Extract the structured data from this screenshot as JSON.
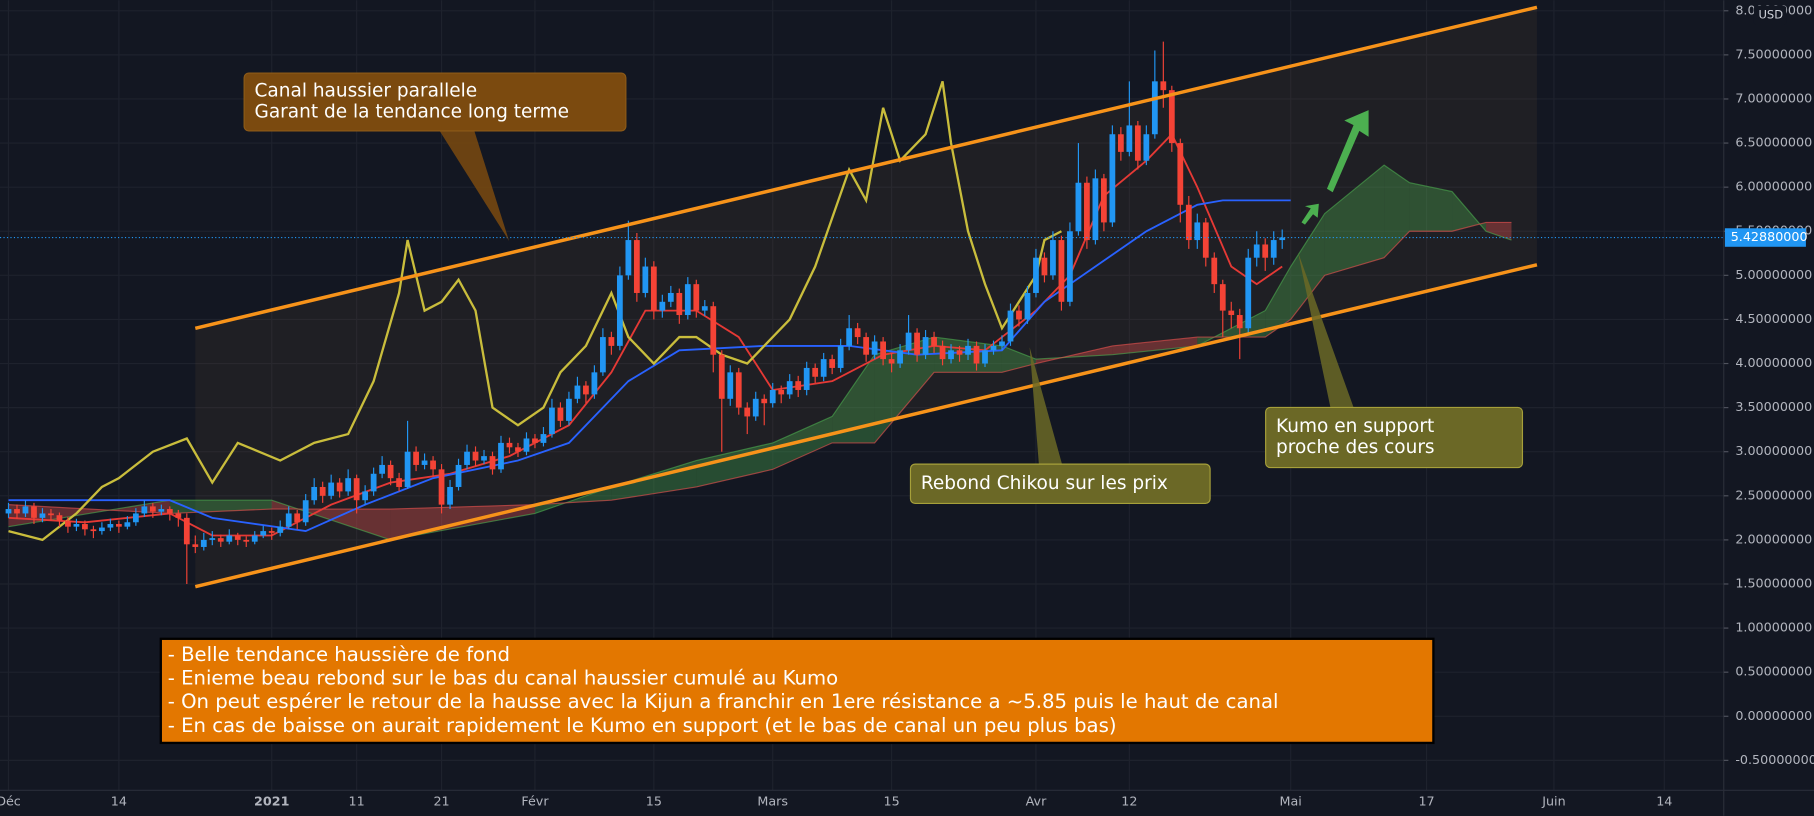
{
  "chart_data": {
    "type": "candlestick",
    "currency": "USD",
    "up_color": "#2196f3",
    "down_color": "#f44336",
    "x": [
      "2020-12-01",
      "2020-12-02",
      "2020-12-03",
      "2020-12-04",
      "2020-12-05",
      "2020-12-06",
      "2020-12-07",
      "2020-12-08",
      "2020-12-09",
      "2020-12-10",
      "2020-12-11",
      "2020-12-12",
      "2020-12-13",
      "2020-12-14",
      "2020-12-15",
      "2020-12-16",
      "2020-12-17",
      "2020-12-18",
      "2020-12-19",
      "2020-12-20",
      "2020-12-21",
      "2020-12-22",
      "2020-12-23",
      "2020-12-24",
      "2020-12-25",
      "2020-12-26",
      "2020-12-27",
      "2020-12-28",
      "2020-12-29",
      "2020-12-30",
      "2020-12-31",
      "2021-01-01",
      "2021-01-02",
      "2021-01-03",
      "2021-01-04",
      "2021-01-05",
      "2021-01-06",
      "2021-01-07",
      "2021-01-08",
      "2021-01-09",
      "2021-01-10",
      "2021-01-11",
      "2021-01-12",
      "2021-01-13",
      "2021-01-14",
      "2021-01-15",
      "2021-01-16",
      "2021-01-17",
      "2021-01-18",
      "2021-01-19",
      "2021-01-20",
      "2021-01-21",
      "2021-01-22",
      "2021-01-23",
      "2021-01-24",
      "2021-01-25",
      "2021-01-26",
      "2021-01-27",
      "2021-01-28",
      "2021-01-29",
      "2021-01-30",
      "2021-01-31",
      "2021-02-01",
      "2021-02-02",
      "2021-02-03",
      "2021-02-04",
      "2021-02-05",
      "2021-02-06",
      "2021-02-07",
      "2021-02-08",
      "2021-02-09",
      "2021-02-10",
      "2021-02-11",
      "2021-02-12",
      "2021-02-13",
      "2021-02-14",
      "2021-02-15",
      "2021-02-16",
      "2021-02-17",
      "2021-02-18",
      "2021-02-19",
      "2021-02-20",
      "2021-02-21",
      "2021-02-22",
      "2021-02-23",
      "2021-02-24",
      "2021-02-25",
      "2021-02-26",
      "2021-02-27",
      "2021-02-28",
      "2021-03-01",
      "2021-03-02",
      "2021-03-03",
      "2021-03-04",
      "2021-03-05",
      "2021-03-06",
      "2021-03-07",
      "2021-03-08",
      "2021-03-09",
      "2021-03-10",
      "2021-03-11",
      "2021-03-12",
      "2021-03-13",
      "2021-03-14",
      "2021-03-15",
      "2021-03-16",
      "2021-03-17",
      "2021-03-18",
      "2021-03-19",
      "2021-03-20",
      "2021-03-21",
      "2021-03-22",
      "2021-03-23",
      "2021-03-24",
      "2021-03-25",
      "2021-03-26",
      "2021-03-27",
      "2021-03-28",
      "2021-03-29",
      "2021-03-30",
      "2021-03-31",
      "2021-04-01",
      "2021-04-02",
      "2021-04-03",
      "2021-04-04",
      "2021-04-05",
      "2021-04-06",
      "2021-04-07",
      "2021-04-08",
      "2021-04-09",
      "2021-04-10",
      "2021-04-11",
      "2021-04-12",
      "2021-04-13",
      "2021-04-14",
      "2021-04-15",
      "2021-04-16",
      "2021-04-17",
      "2021-04-18",
      "2021-04-19",
      "2021-04-20",
      "2021-04-21",
      "2021-04-22",
      "2021-04-23",
      "2021-04-24",
      "2021-04-25",
      "2021-04-26",
      "2021-04-27",
      "2021-04-28",
      "2021-04-29",
      "2021-04-30"
    ],
    "open": [
      2.3,
      2.35,
      2.3,
      2.38,
      2.25,
      2.3,
      2.28,
      2.22,
      2.15,
      2.18,
      2.12,
      2.1,
      2.14,
      2.18,
      2.15,
      2.2,
      2.3,
      2.38,
      2.32,
      2.35,
      2.3,
      2.25,
      1.95,
      1.92,
      2.0,
      2.02,
      1.98,
      2.05,
      2.0,
      1.98,
      2.05,
      2.1,
      2.08,
      2.15,
      2.3,
      2.2,
      2.45,
      2.6,
      2.5,
      2.65,
      2.55,
      2.7,
      2.45,
      2.55,
      2.75,
      2.85,
      2.7,
      2.6,
      3.0,
      2.85,
      2.9,
      2.8,
      2.4,
      2.6,
      2.85,
      3.0,
      2.9,
      2.95,
      2.8,
      3.1,
      3.05,
      3.0,
      3.15,
      3.1,
      3.2,
      3.5,
      3.35,
      3.6,
      3.75,
      3.65,
      3.9,
      4.3,
      4.2,
      5.0,
      5.4,
      4.8,
      5.1,
      4.6,
      4.7,
      4.8,
      4.55,
      4.9,
      4.6,
      4.65,
      4.1,
      3.6,
      3.9,
      3.5,
      3.4,
      3.6,
      3.55,
      3.7,
      3.65,
      3.8,
      3.7,
      3.95,
      3.85,
      4.05,
      3.95,
      4.2,
      4.4,
      4.3,
      4.1,
      4.25,
      4.05,
      4.0,
      4.15,
      4.35,
      4.1,
      4.3,
      4.2,
      4.05,
      4.15,
      4.1,
      4.2,
      4.0,
      4.15,
      4.2,
      4.25,
      4.6,
      4.5,
      4.8,
      5.2,
      5.0,
      5.4,
      4.7,
      5.5,
      6.05,
      5.4,
      6.1,
      5.6,
      6.6,
      6.4,
      6.7,
      6.3,
      6.6,
      7.2,
      7.1,
      6.5,
      5.8,
      5.4,
      5.6,
      5.2,
      4.9,
      4.6,
      4.55,
      4.4,
      5.2,
      5.35,
      5.2,
      5.4
    ],
    "high": [
      2.42,
      2.4,
      2.45,
      2.42,
      2.36,
      2.35,
      2.31,
      2.26,
      2.24,
      2.22,
      2.16,
      2.2,
      2.24,
      2.22,
      2.27,
      2.36,
      2.45,
      2.42,
      2.4,
      2.38,
      2.34,
      2.3,
      2.05,
      2.08,
      2.1,
      2.06,
      2.12,
      2.08,
      2.04,
      2.1,
      2.16,
      2.14,
      2.22,
      2.38,
      2.34,
      2.52,
      2.7,
      2.66,
      2.74,
      2.7,
      2.8,
      2.74,
      2.62,
      2.82,
      2.95,
      2.9,
      2.76,
      3.35,
      3.06,
      2.98,
      2.95,
      2.86,
      2.68,
      2.92,
      3.08,
      3.06,
      3.02,
      3.0,
      3.18,
      3.16,
      3.1,
      3.22,
      3.2,
      3.28,
      3.6,
      3.56,
      3.68,
      3.85,
      3.8,
      3.98,
      4.4,
      4.36,
      5.1,
      5.62,
      5.48,
      5.2,
      5.16,
      4.78,
      4.88,
      4.85,
      4.98,
      4.95,
      4.72,
      4.7,
      4.15,
      3.98,
      3.95,
      3.56,
      3.68,
      3.65,
      3.78,
      3.75,
      3.88,
      3.86,
      4.02,
      4.0,
      4.12,
      4.1,
      4.28,
      4.55,
      4.46,
      4.35,
      4.32,
      4.3,
      4.12,
      4.22,
      4.55,
      4.4,
      4.38,
      4.36,
      4.26,
      4.22,
      4.2,
      4.28,
      4.25,
      4.22,
      4.26,
      4.32,
      4.68,
      4.66,
      4.88,
      5.3,
      5.26,
      5.5,
      5.45,
      5.6,
      6.5,
      6.12,
      6.2,
      6.15,
      6.7,
      6.68,
      7.2,
      6.75,
      6.7,
      7.55,
      7.65,
      7.15,
      6.55,
      5.9,
      5.7,
      5.65,
      5.26,
      4.95,
      4.7,
      4.62,
      5.3,
      5.5,
      5.42,
      5.5,
      5.52
    ],
    "low": [
      2.25,
      2.24,
      2.26,
      2.18,
      2.2,
      2.22,
      2.15,
      2.08,
      2.1,
      2.05,
      2.02,
      2.06,
      2.1,
      2.08,
      2.12,
      2.16,
      2.26,
      2.25,
      2.28,
      2.22,
      2.15,
      1.5,
      1.85,
      1.88,
      1.94,
      1.92,
      1.95,
      1.94,
      1.92,
      1.95,
      2.02,
      2.0,
      2.04,
      2.12,
      2.12,
      2.16,
      2.4,
      2.42,
      2.46,
      2.48,
      2.5,
      2.3,
      2.4,
      2.5,
      2.7,
      2.62,
      2.55,
      2.58,
      2.78,
      2.8,
      2.72,
      2.3,
      2.35,
      2.56,
      2.8,
      2.84,
      2.86,
      2.74,
      2.76,
      2.98,
      2.94,
      2.96,
      3.04,
      3.06,
      3.16,
      3.28,
      3.3,
      3.55,
      3.55,
      3.6,
      3.86,
      4.1,
      4.15,
      4.95,
      4.7,
      4.75,
      4.5,
      4.52,
      4.64,
      4.45,
      4.5,
      4.52,
      4.54,
      3.9,
      3.0,
      3.52,
      3.42,
      3.2,
      3.35,
      3.3,
      3.5,
      3.55,
      3.6,
      3.62,
      3.64,
      3.78,
      3.8,
      3.88,
      3.9,
      4.15,
      4.22,
      4.02,
      4.05,
      3.98,
      3.9,
      3.95,
      4.1,
      4.02,
      4.05,
      4.12,
      3.98,
      4.0,
      4.02,
      4.04,
      3.92,
      3.96,
      4.1,
      4.15,
      4.2,
      4.42,
      4.45,
      4.75,
      4.92,
      4.95,
      4.6,
      4.65,
      5.45,
      5.3,
      5.35,
      5.5,
      5.55,
      6.3,
      6.35,
      6.2,
      6.25,
      6.55,
      6.9,
      6.4,
      5.6,
      5.3,
      5.3,
      5.1,
      4.8,
      4.3,
      4.4,
      4.05,
      4.35,
      5.1,
      5.05,
      5.12,
      5.3
    ],
    "close": [
      2.35,
      2.3,
      2.38,
      2.25,
      2.3,
      2.28,
      2.22,
      2.15,
      2.18,
      2.12,
      2.1,
      2.14,
      2.18,
      2.15,
      2.2,
      2.3,
      2.38,
      2.32,
      2.35,
      2.3,
      2.25,
      1.95,
      1.92,
      2.0,
      2.02,
      1.98,
      2.05,
      2.0,
      1.98,
      2.05,
      2.1,
      2.08,
      2.15,
      2.3,
      2.2,
      2.45,
      2.6,
      2.5,
      2.65,
      2.55,
      2.7,
      2.45,
      2.55,
      2.75,
      2.85,
      2.7,
      2.6,
      3.0,
      2.85,
      2.9,
      2.8,
      2.4,
      2.6,
      2.85,
      3.0,
      2.9,
      2.95,
      2.8,
      3.1,
      3.05,
      3.0,
      3.15,
      3.1,
      3.2,
      3.5,
      3.35,
      3.6,
      3.75,
      3.65,
      3.9,
      4.3,
      4.2,
      5.0,
      5.4,
      4.8,
      5.1,
      4.6,
      4.7,
      4.8,
      4.55,
      4.9,
      4.6,
      4.65,
      4.1,
      3.6,
      3.9,
      3.5,
      3.4,
      3.6,
      3.55,
      3.7,
      3.65,
      3.8,
      3.7,
      3.95,
      3.85,
      4.05,
      3.95,
      4.2,
      4.4,
      4.3,
      4.1,
      4.25,
      4.05,
      4.0,
      4.15,
      4.35,
      4.1,
      4.3,
      4.2,
      4.05,
      4.15,
      4.1,
      4.2,
      4.0,
      4.15,
      4.2,
      4.25,
      4.6,
      4.5,
      4.8,
      5.2,
      5.0,
      5.4,
      4.7,
      5.5,
      6.05,
      5.4,
      6.1,
      5.6,
      6.6,
      6.4,
      6.7,
      6.3,
      6.6,
      7.2,
      7.1,
      6.5,
      5.8,
      5.4,
      5.6,
      5.2,
      4.9,
      4.6,
      4.55,
      4.4,
      5.2,
      5.35,
      5.2,
      5.4,
      5.4288
    ],
    "price_line": {
      "value": 5.4288,
      "label": "5.42880000",
      "color": "#2196f3"
    },
    "lines": [
      {
        "color": "#e53935",
        "x": [
          "2020-12-01",
          "2020-12-10",
          "2020-12-20",
          "2020-12-25",
          "2021-01-01",
          "2021-01-08",
          "2021-01-15",
          "2021-01-22",
          "2021-01-29",
          "2021-02-05",
          "2021-02-10",
          "2021-02-14",
          "2021-02-20",
          "2021-02-25",
          "2021-03-01",
          "2021-03-08",
          "2021-03-14",
          "2021-03-20",
          "2021-03-26",
          "2021-04-01",
          "2021-04-05",
          "2021-04-09",
          "2021-04-14",
          "2021-04-17",
          "2021-04-20",
          "2021-04-24",
          "2021-04-27",
          "2021-04-30"
        ],
        "values": [
          2.25,
          2.2,
          2.3,
          2.05,
          2.05,
          2.4,
          2.65,
          2.75,
          2.95,
          3.3,
          3.9,
          4.6,
          4.6,
          4.3,
          3.7,
          3.8,
          4.1,
          4.2,
          4.15,
          4.6,
          5.0,
          5.9,
          6.3,
          6.6,
          6.0,
          5.1,
          4.9,
          5.1
        ]
      },
      {
        "color": "#2962ff",
        "x": [
          "2020-12-01",
          "2020-12-20",
          "2020-12-25",
          "2021-01-05",
          "2021-01-12",
          "2021-01-20",
          "2021-01-30",
          "2021-02-05",
          "2021-02-12",
          "2021-02-18",
          "2021-02-28",
          "2021-03-10",
          "2021-03-18",
          "2021-03-28",
          "2021-04-02",
          "2021-04-08",
          "2021-04-14",
          "2021-04-20",
          "2021-04-23",
          "2021-05-01"
        ],
        "values": [
          2.45,
          2.45,
          2.25,
          2.1,
          2.4,
          2.7,
          2.9,
          3.1,
          3.8,
          4.15,
          4.2,
          4.2,
          4.1,
          4.15,
          4.7,
          5.1,
          5.5,
          5.8,
          5.85,
          5.85
        ]
      },
      {
        "color": "#c9bd3c",
        "x": [
          "2020-12-01",
          "2020-12-05",
          "2020-12-09",
          "2020-12-12",
          "2020-12-14",
          "2020-12-18",
          "2020-12-22",
          "2020-12-25",
          "2020-12-28",
          "2021-01-02",
          "2021-01-06",
          "2021-01-10",
          "2021-01-13",
          "2021-01-16",
          "2021-01-17",
          "2021-01-19",
          "2021-01-21",
          "2021-01-23",
          "2021-01-25",
          "2021-01-27",
          "2021-01-30",
          "2021-02-02",
          "2021-02-04",
          "2021-02-07",
          "2021-02-10",
          "2021-02-12",
          "2021-02-15",
          "2021-02-18",
          "2021-02-20",
          "2021-02-23",
          "2021-02-26",
          "2021-03-01",
          "2021-03-03",
          "2021-03-06",
          "2021-03-10",
          "2021-03-12",
          "2021-03-14",
          "2021-03-16",
          "2021-03-19",
          "2021-03-21",
          "2021-03-22",
          "2021-03-24",
          "2021-03-26",
          "2021-03-28",
          "2021-04-01",
          "2021-04-02",
          "2021-04-04"
        ],
        "values": [
          2.1,
          2.0,
          2.3,
          2.6,
          2.7,
          3.0,
          3.15,
          2.65,
          3.1,
          2.9,
          3.1,
          3.2,
          3.8,
          4.8,
          5.4,
          4.6,
          4.7,
          4.95,
          4.6,
          3.5,
          3.3,
          3.5,
          3.9,
          4.2,
          4.8,
          4.3,
          4.0,
          4.3,
          4.3,
          4.1,
          4.0,
          4.3,
          4.5,
          5.1,
          6.2,
          5.85,
          6.9,
          6.3,
          6.6,
          7.2,
          6.5,
          5.5,
          4.9,
          4.4,
          5.0,
          5.4,
          5.5
        ]
      }
    ],
    "cloud": {
      "up_color": "#4caf50",
      "down_color": "#ef5350",
      "x": [
        "2020-12-01",
        "2020-12-20",
        "2021-01-01",
        "2021-01-15",
        "2021-02-01",
        "2021-02-10",
        "2021-02-20",
        "2021-03-01",
        "2021-03-08",
        "2021-03-13",
        "2021-03-20",
        "2021-03-28",
        "2021-04-01",
        "2021-04-10",
        "2021-04-20",
        "2021-04-28",
        "2021-05-01",
        "2021-05-05",
        "2021-05-12",
        "2021-05-15",
        "2021-05-20",
        "2021-05-24",
        "2021-05-27"
      ],
      "span_a": [
        2.15,
        2.45,
        2.45,
        2.0,
        2.3,
        2.6,
        2.9,
        3.1,
        3.4,
        4.1,
        4.3,
        4.2,
        4.05,
        4.1,
        4.2,
        4.6,
        5.1,
        5.7,
        6.25,
        6.05,
        5.95,
        5.5,
        5.4
      ],
      "span_b": [
        2.4,
        2.3,
        2.35,
        2.35,
        2.4,
        2.45,
        2.6,
        2.8,
        3.1,
        3.1,
        3.9,
        3.9,
        4.0,
        4.2,
        4.3,
        4.3,
        4.5,
        5.0,
        5.2,
        5.5,
        5.5,
        5.6,
        5.6
      ]
    },
    "channel": {
      "color": "#f7931a",
      "x": [
        "2020-12-23",
        "2021-05-30"
      ],
      "upper": [
        4.4,
        8.04
      ],
      "lower": [
        1.47,
        5.12
      ]
    },
    "annotations": [
      {
        "lines": [
          "Canal haussier parallele",
          "Garant de la tendance long terme"
        ]
      },
      {
        "lines": [
          "Rebond Chikou sur les prix"
        ]
      },
      {
        "lines": [
          "Kumo en support",
          "proche des cours"
        ]
      },
      {
        "lines": [
          "- Belle tendance haussière de fond",
          "- Enieme beau rebond sur le bas du canal haussier cumulé au Kumo",
          "- On peut espérer le retour de la hausse avec la Kijun a franchir en 1ere résistance a ~5.85 puis le haut de canal",
          "- En cas de baisse on aurait rapidement le Kumo en support (et le bas de canal un peu plus bas)"
        ]
      }
    ],
    "xlim": [
      "2020-11-30",
      "2021-06-21"
    ],
    "xticks": [
      {
        "value": "2020-12-01",
        "label": "Déc"
      },
      {
        "value": "2020-12-14",
        "label": "14"
      },
      {
        "value": "2021-01-01",
        "label": "2021"
      },
      {
        "value": "2021-01-11",
        "label": "11"
      },
      {
        "value": "2021-01-21",
        "label": "21"
      },
      {
        "value": "2021-02-01",
        "label": "Févr"
      },
      {
        "value": "2021-02-15",
        "label": "15"
      },
      {
        "value": "2021-03-01",
        "label": "Mars"
      },
      {
        "value": "2021-03-15",
        "label": "15"
      },
      {
        "value": "2021-04-01",
        "label": "Avr"
      },
      {
        "value": "2021-04-12",
        "label": "12"
      },
      {
        "value": "2021-05-01",
        "label": "Mai"
      },
      {
        "value": "2021-05-17",
        "label": "17"
      },
      {
        "value": "2021-06-01",
        "label": "Juin"
      },
      {
        "value": "2021-06-14",
        "label": "14"
      }
    ],
    "ylim": [
      -0.84,
      8.12
    ],
    "yticks": [
      {
        "value": 8,
        "label": "8.00000000"
      },
      {
        "value": 7.5,
        "label": "7.50000000"
      },
      {
        "value": 7,
        "label": "7.00000000"
      },
      {
        "value": 6.5,
        "label": "6.50000000"
      },
      {
        "value": 6,
        "label": "6.00000000"
      },
      {
        "value": 5.5,
        "label": "5.50000000"
      },
      {
        "value": 5,
        "label": "5.00000000"
      },
      {
        "value": 4.5,
        "label": "4.50000000"
      },
      {
        "value": 4,
        "label": "4.00000000"
      },
      {
        "value": 3.5,
        "label": "3.50000000"
      },
      {
        "value": 3,
        "label": "3.00000000"
      },
      {
        "value": 2.5,
        "label": "2.50000000"
      },
      {
        "value": 2,
        "label": "2.00000000"
      },
      {
        "value": 1.5,
        "label": "1.50000000"
      },
      {
        "value": 1,
        "label": "1.00000000"
      },
      {
        "value": 0.5,
        "label": "0.50000000"
      },
      {
        "value": 0,
        "label": "0.00000000"
      },
      {
        "value": -0.5,
        "label": "-0.50000000"
      }
    ],
    "grid": true
  }
}
